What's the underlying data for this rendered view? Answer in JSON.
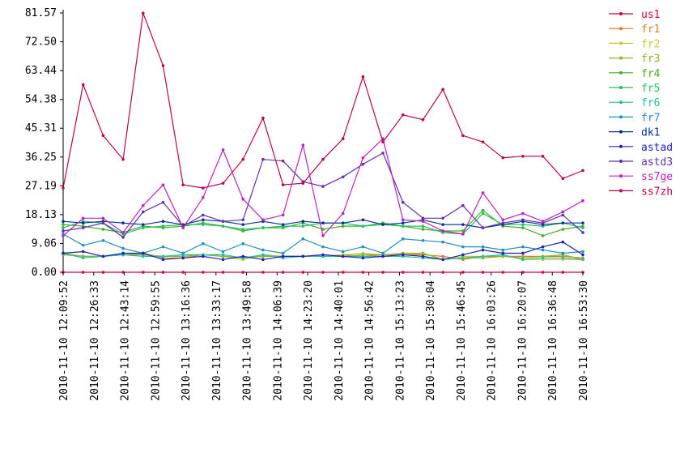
{
  "chart_data": {
    "type": "line",
    "ylim": [
      0,
      81.57
    ],
    "yticks": [
      "0.00",
      "9.06",
      "18.13",
      "27.19",
      "36.25",
      "45.31",
      "54.38",
      "63.44",
      "72.50",
      "81.57"
    ],
    "xticks": [
      "2010-11-10 12:09:52",
      "2010-11-10 12:26:33",
      "2010-11-10 12:43:14",
      "2010-11-10 12:59:55",
      "2010-11-10 13:16:36",
      "2010-11-10 13:33:17",
      "2010-11-10 13:49:58",
      "2010-11-10 14:06:39",
      "2010-11-10 14:23:20",
      "2010-11-10 14:40:01",
      "2010-11-10 14:56:42",
      "2010-11-10 15:13:23",
      "2010-11-10 15:30:04",
      "2010-11-10 15:46:45",
      "2010-11-10 16:03:26",
      "2010-11-10 16:20:07",
      "2010-11-10 16:36:48",
      "2010-11-10 16:53:30"
    ],
    "x_points": 27,
    "grid": false,
    "legend_position": "right",
    "series": [
      {
        "name": "us1",
        "color": "#d0003c",
        "values": [
          0,
          0,
          0,
          0,
          0,
          0,
          0,
          0,
          0,
          0,
          0,
          0,
          0,
          0,
          0,
          0,
          0,
          0,
          0,
          0,
          0,
          0,
          0,
          0,
          0,
          0,
          0
        ]
      },
      {
        "name": "fr1",
        "color": "#e07b20",
        "values": [
          6,
          5,
          5,
          5.5,
          6,
          4.5,
          4.5,
          5.5,
          5,
          4.5,
          5,
          5,
          5,
          5,
          5.5,
          5,
          5.5,
          5.5,
          5.5,
          5,
          4,
          5,
          5,
          5,
          5,
          5,
          4.5
        ]
      },
      {
        "name": "fr2",
        "color": "#c8c830",
        "values": [
          6,
          5,
          5,
          5.5,
          5.5,
          5,
          5,
          5.5,
          5,
          4,
          5.5,
          5,
          5,
          5,
          5.5,
          6,
          5.5,
          5.5,
          6,
          4,
          5,
          5,
          5.5,
          4,
          4,
          4,
          4
        ]
      },
      {
        "name": "fr3",
        "color": "#8ab820",
        "values": [
          5.5,
          5,
          5,
          5.5,
          5.5,
          5,
          5,
          5.5,
          5,
          4.5,
          5,
          5,
          5,
          5,
          5,
          5.5,
          5.5,
          6,
          6,
          4,
          4.5,
          4.5,
          5,
          4.5,
          5,
          5.5,
          4
        ]
      },
      {
        "name": "fr4",
        "color": "#40b020",
        "values": [
          15,
          14.5,
          13.5,
          12.5,
          14.5,
          14,
          14.5,
          15.5,
          14.5,
          13,
          14,
          14,
          15.5,
          13.5,
          14.5,
          14.5,
          15.5,
          14.5,
          13.5,
          13,
          13,
          19.5,
          14.5,
          14,
          11.5,
          13.5,
          14.5
        ]
      },
      {
        "name": "fr5",
        "color": "#20c060",
        "values": [
          14,
          16,
          15.5,
          12,
          14,
          14.5,
          15,
          15,
          14.5,
          13.5,
          14,
          14.5,
          14.5,
          15.5,
          15.5,
          14.5,
          15,
          14.5,
          14.5,
          12.5,
          12,
          18.5,
          15,
          15,
          14.5,
          15.5,
          14
        ]
      },
      {
        "name": "fr6",
        "color": "#20c0a0",
        "values": [
          6,
          4.5,
          5,
          5.5,
          5,
          5,
          5.5,
          5.5,
          5.5,
          4.5,
          5.5,
          4.5,
          5,
          5,
          5,
          5,
          5,
          5,
          4.5,
          4,
          4.5,
          5,
          5.5,
          4,
          4.5,
          4.5,
          4
        ]
      },
      {
        "name": "fr7",
        "color": "#2090c0",
        "values": [
          12,
          8.5,
          10,
          7.5,
          6,
          8,
          6,
          9,
          6.5,
          9,
          7,
          6,
          10.5,
          8,
          6.5,
          8,
          6,
          10.5,
          10,
          9.5,
          8,
          8,
          7,
          8,
          7,
          6,
          6.5
        ]
      },
      {
        "name": "dk1",
        "color": "#0030a0",
        "values": [
          16,
          15.5,
          16,
          15.5,
          15,
          16,
          15,
          16.5,
          16,
          15,
          16,
          15,
          16,
          15.5,
          15.5,
          16.5,
          15,
          15.5,
          16.5,
          15,
          15,
          14,
          15,
          16,
          15,
          15.5,
          15.5
        ]
      },
      {
        "name": "astad",
        "color": "#2020c0",
        "values": [
          6,
          6.5,
          5,
          6,
          6,
          4,
          4.5,
          5,
          4,
          5,
          4,
          5,
          5,
          5.5,
          5,
          4.5,
          5,
          5.5,
          5,
          4,
          5.5,
          7,
          6,
          6,
          8,
          9.5,
          5.5
        ]
      },
      {
        "name": "astd3",
        "color": "#6030b0",
        "values": [
          13,
          14,
          15.5,
          11,
          19,
          22,
          14.5,
          18,
          16,
          16.5,
          35.5,
          35,
          28.5,
          27,
          30,
          34,
          37.5,
          22,
          17,
          17,
          21,
          14,
          15.5,
          16.5,
          15.5,
          18,
          12.5
        ]
      },
      {
        "name": "ss7ge",
        "color": "#c020c0",
        "values": [
          11.5,
          17,
          17,
          12.5,
          21,
          27.5,
          14,
          23.5,
          38.5,
          23,
          16.5,
          18,
          40,
          11.5,
          18.5,
          36,
          42,
          16.5,
          16,
          13,
          12,
          25,
          16.5,
          18.5,
          16,
          19,
          22.5
        ]
      },
      {
        "name": "ss7zh",
        "color": "#c00050",
        "values": [
          26.5,
          59,
          43,
          35.5,
          81.5,
          65,
          27.5,
          26.5,
          28,
          35.5,
          48.5,
          27.5,
          28,
          35.5,
          42,
          61.5,
          41,
          49.5,
          48,
          57.5,
          43,
          41,
          36,
          36.5,
          36.5,
          29.5,
          32
        ]
      }
    ]
  }
}
